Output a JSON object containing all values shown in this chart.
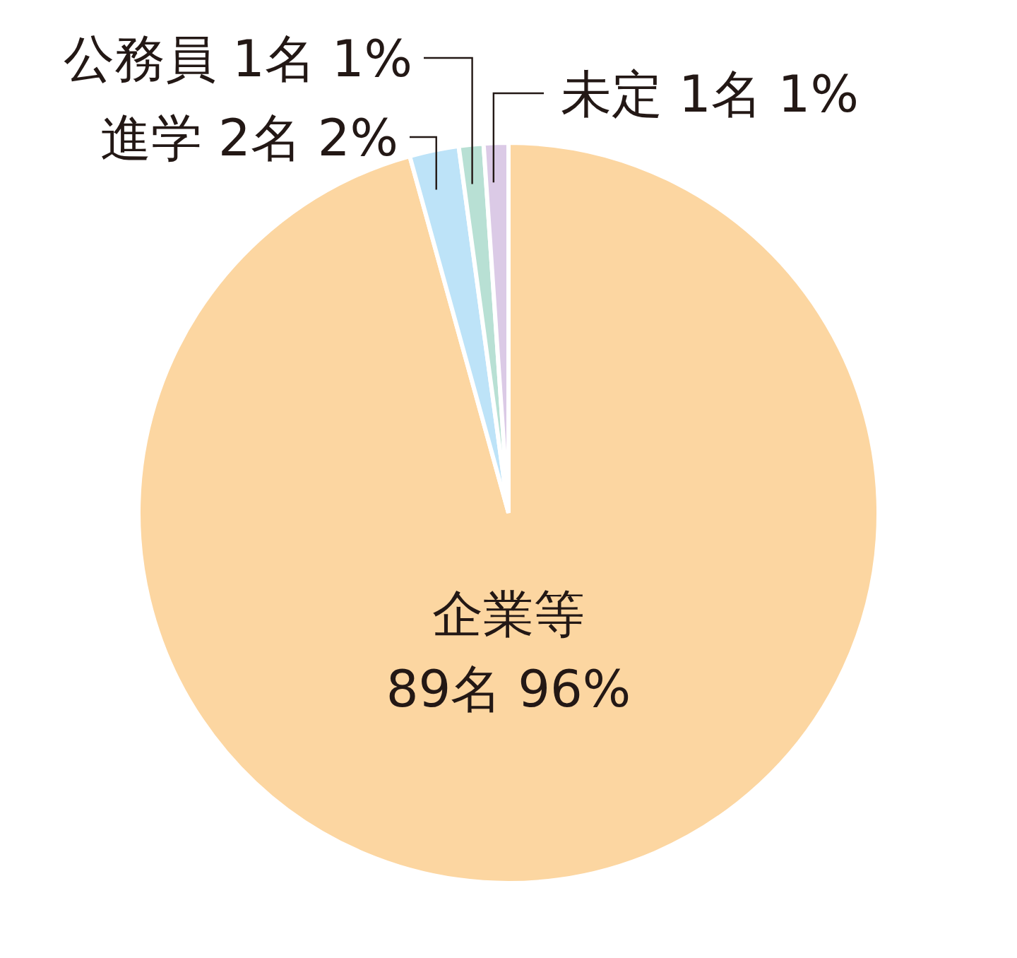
{
  "chart_data": {
    "type": "pie",
    "categories": [
      "企業等",
      "進学",
      "公務員",
      "未定"
    ],
    "values": [
      89,
      2,
      1,
      1
    ],
    "value_labels": [
      "89名 96%",
      "2名 2%",
      "1名 1%",
      "1名 1%"
    ],
    "colors": [
      "#fcd6a1",
      "#bde3f8",
      "#b8e0d4",
      "#dbcae6"
    ]
  }
}
